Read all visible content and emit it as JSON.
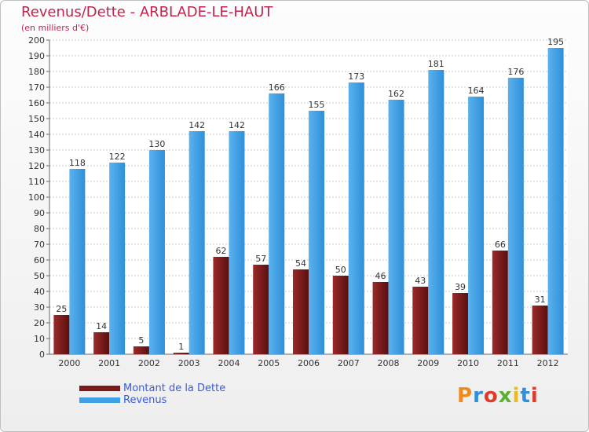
{
  "header": {
    "title": "Revenus/Dette - ARBLADE-LE-HAUT",
    "subtitle": "(en milliers d'€)"
  },
  "legend": {
    "debt_label": "Montant de la Dette",
    "revenue_label": "Revenus"
  },
  "logo": {
    "text": "Proxiti",
    "letter_colors": [
      "#f08a1c",
      "#2f8fd8",
      "#e23a2a",
      "#5bb030",
      "#f0b81c",
      "#2f8fd8",
      "#e23a2a"
    ]
  },
  "colors": {
    "debt": "#7a1a1a",
    "revenue": "#3fa0e6",
    "grid": "#cccccc",
    "title": "#c0244d"
  },
  "chart_data": {
    "type": "bar",
    "title": "Revenus/Dette - ARBLADE-LE-HAUT",
    "subtitle": "(en milliers d'€)",
    "xlabel": "",
    "ylabel": "",
    "ylim": [
      0,
      200
    ],
    "ytick_step": 10,
    "grid": true,
    "legend_position": "bottom-left",
    "categories": [
      "2000",
      "2001",
      "2002",
      "2003",
      "2004",
      "2005",
      "2006",
      "2007",
      "2008",
      "2009",
      "2010",
      "2011",
      "2012"
    ],
    "series": [
      {
        "name": "Montant de la Dette",
        "values": [
          25,
          14,
          5,
          1,
          62,
          57,
          54,
          50,
          46,
          43,
          39,
          66,
          31
        ]
      },
      {
        "name": "Revenus",
        "values": [
          118,
          122,
          130,
          142,
          142,
          166,
          155,
          173,
          162,
          181,
          164,
          176,
          195
        ]
      }
    ]
  }
}
